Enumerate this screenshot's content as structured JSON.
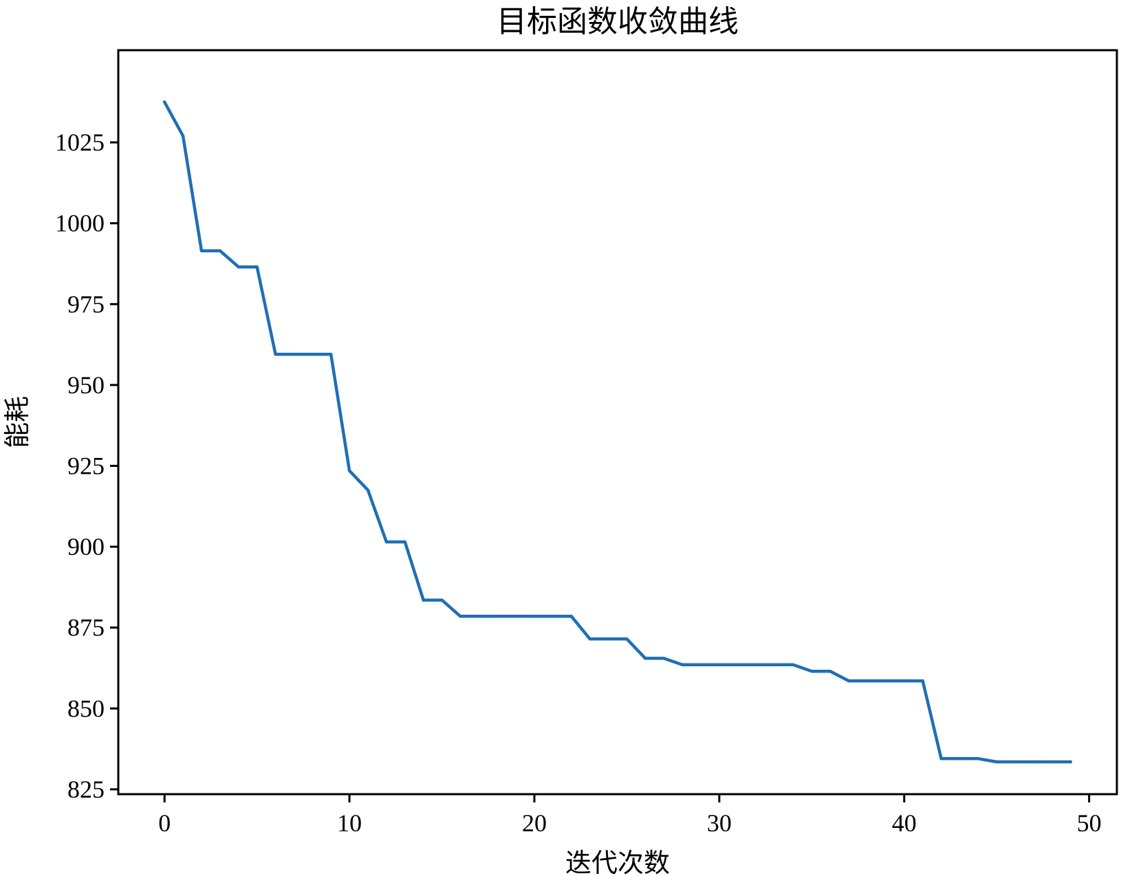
{
  "chart_data": {
    "type": "line",
    "title": "目标函数收敛曲线",
    "xlabel": "迭代次数",
    "ylabel": "能耗",
    "xlim": [
      -2.5,
      51.5
    ],
    "ylim": [
      823.5,
      1053.5
    ],
    "xticks": [
      0,
      10,
      20,
      30,
      40,
      50
    ],
    "yticks": [
      825,
      850,
      875,
      900,
      925,
      950,
      975,
      1000,
      1025
    ],
    "grid": false,
    "legend": "none",
    "series": [
      {
        "color": "#1f6fb4",
        "x": [
          0,
          1,
          2,
          3,
          4,
          5,
          6,
          7,
          8,
          9,
          10,
          11,
          12,
          13,
          14,
          15,
          16,
          17,
          18,
          19,
          20,
          21,
          22,
          23,
          24,
          25,
          26,
          27,
          28,
          29,
          30,
          31,
          32,
          33,
          34,
          35,
          36,
          37,
          38,
          39,
          40,
          41,
          42,
          43,
          44,
          45,
          46,
          47,
          48,
          49
        ],
        "y": [
          1037.5,
          1027,
          991.5,
          991.5,
          986.5,
          986.5,
          959.5,
          959.5,
          959.5,
          959.5,
          923.5,
          917.5,
          901.5,
          901.5,
          883.5,
          883.5,
          878.5,
          878.5,
          878.5,
          878.5,
          878.5,
          878.5,
          878.5,
          871.5,
          871.5,
          871.5,
          865.5,
          865.5,
          863.5,
          863.5,
          863.5,
          863.5,
          863.5,
          863.5,
          863.5,
          861.5,
          861.5,
          858.5,
          858.5,
          858.5,
          858.5,
          858.5,
          834.5,
          834.5,
          834.5,
          833.5,
          833.5,
          833.5,
          833.5,
          833.5
        ]
      }
    ]
  }
}
